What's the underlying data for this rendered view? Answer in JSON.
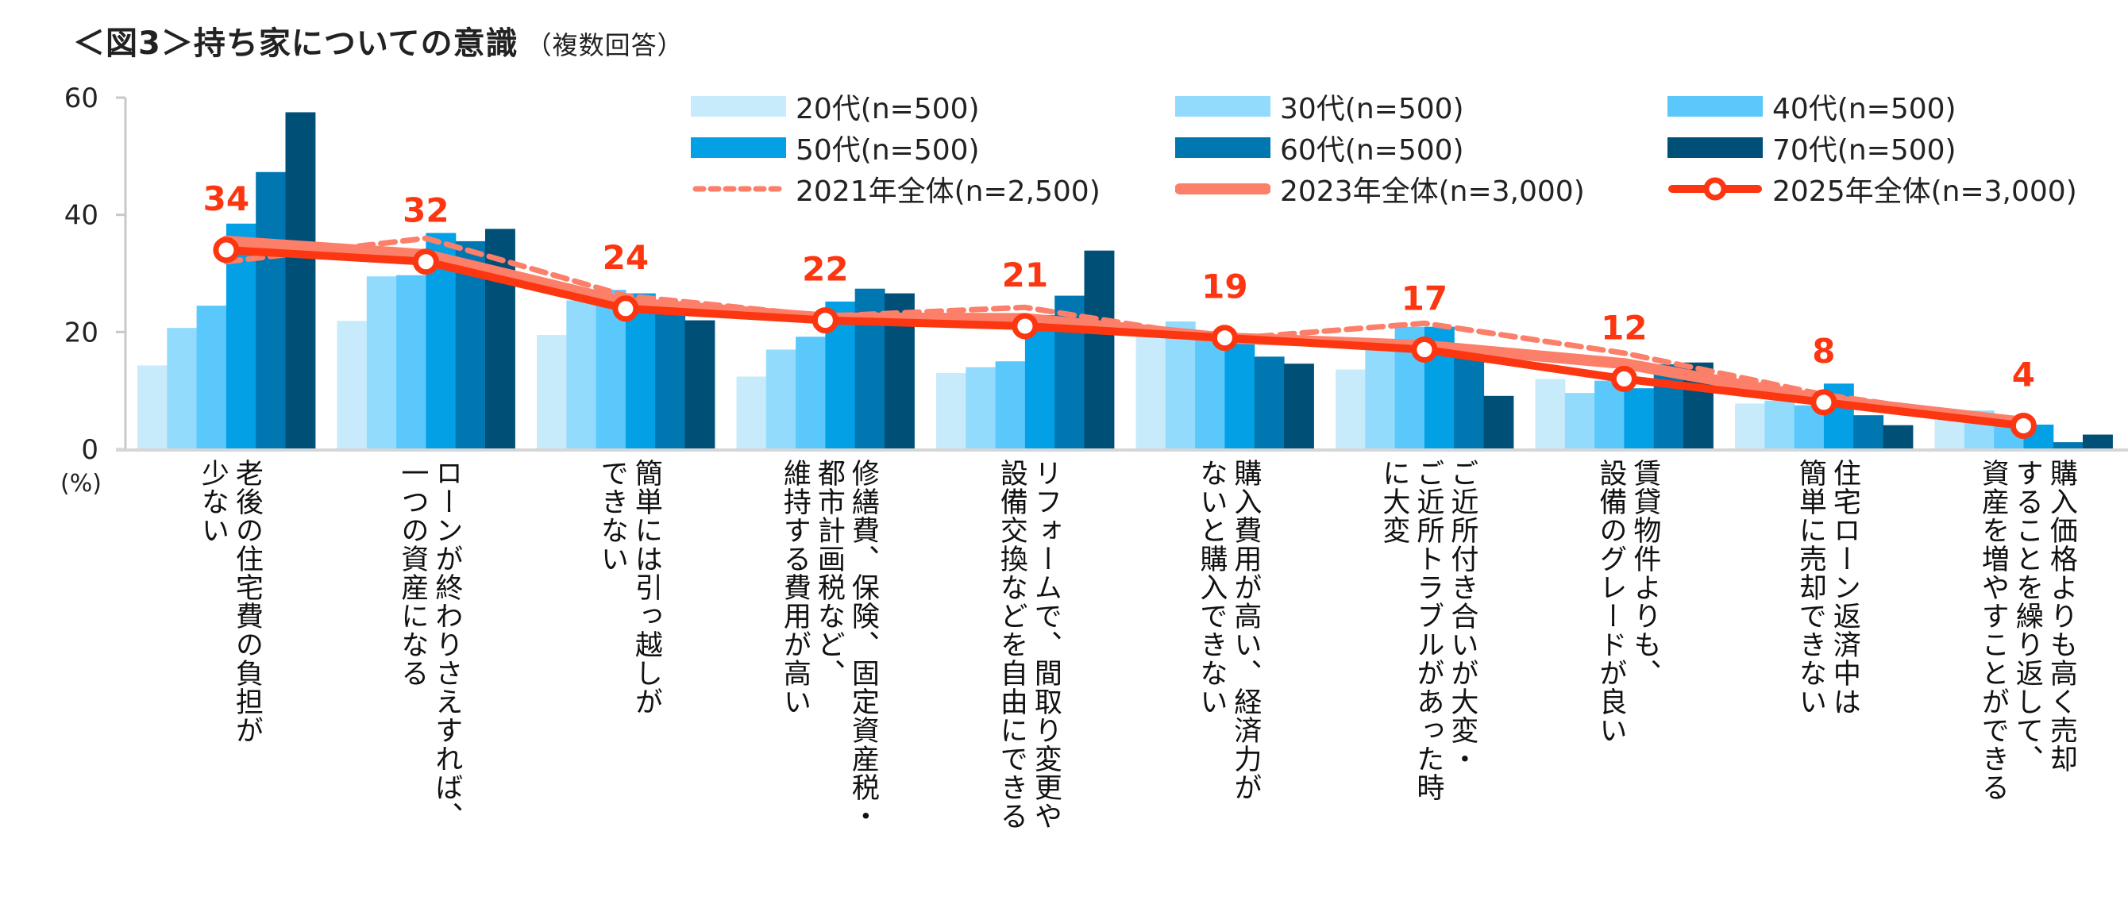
{
  "title": {
    "main": "＜図3＞持ち家についての意識",
    "sub": "（複数回答）"
  },
  "unit_label": "(%)",
  "chart_data": {
    "type": "bar",
    "title": "＜図3＞持ち家についての意識（複数回答）",
    "xlabel": "",
    "ylabel": "(%)",
    "ylim": [
      0,
      60
    ],
    "yticks": [
      0,
      20,
      40,
      60
    ],
    "grid": false,
    "legend_position": "top-right",
    "categories": [
      "老後の住宅費の負担が\n少ない",
      "ローンが終わりさえすれば、\n一つの資産になる",
      "簡単には引っ越しが\nできない",
      "修繕費、保険、固定資産税・\n都市計画税など、\n維持する費用が高い",
      "リフォームで、間取り変更や\n設備交換などを自由にできる",
      "購入費用が高い、経済力が\nないと購入できない",
      "ご近所付き合いが大変・\nご近所トラブルがあった時\nに大変",
      "賃貸物件よりも、\n設備のグレードが良い",
      "住宅ローン返済中は\n簡単に売却できない",
      "購入価格よりも高く売却\nすることを繰り返して、\n資産を増やすことができる"
    ],
    "bar_series": [
      {
        "name": "20代(n=500)",
        "color": "#c8ebfb",
        "values": [
          14.3,
          21.9,
          19.5,
          12.4,
          13.0,
          20.8,
          13.6,
          12.0,
          7.8,
          5.0
        ]
      },
      {
        "name": "30代(n=500)",
        "color": "#93dbfc",
        "values": [
          20.7,
          29.5,
          25.4,
          17.0,
          14.0,
          21.8,
          17.5,
          9.6,
          8.3,
          6.6
        ]
      },
      {
        "name": "40代(n=500)",
        "color": "#5bc8fc",
        "values": [
          24.5,
          29.7,
          27.2,
          19.2,
          15.0,
          19.5,
          20.9,
          11.7,
          7.5,
          4.5
        ]
      },
      {
        "name": "50代(n=500)",
        "color": "#03a0e6",
        "values": [
          38.5,
          36.9,
          26.6,
          25.2,
          22.9,
          18.5,
          20.9,
          10.4,
          11.2,
          4.2
        ]
      },
      {
        "name": "60代(n=500)",
        "color": "#0077b0",
        "values": [
          47.3,
          35.5,
          24.0,
          27.4,
          26.2,
          15.8,
          16.5,
          14.5,
          5.8,
          1.2
        ]
      },
      {
        "name": "70代(n=500)",
        "color": "#004f76",
        "values": [
          57.5,
          37.6,
          22.0,
          26.6,
          33.9,
          14.6,
          9.1,
          14.8,
          4.1,
          2.5
        ]
      }
    ],
    "line_series": [
      {
        "name": "2021年全体(n=2,500)",
        "color": "#fc7f6a",
        "style": "dashed",
        "values": [
          32,
          36,
          26.2,
          22.7,
          24.2,
          18.8,
          21.5,
          16.4,
          9.3,
          4.5
        ]
      },
      {
        "name": "2023年全体(n=3,000)",
        "color": "#fc7f6a",
        "style": "solid-thick",
        "values": [
          35.5,
          33.2,
          25.0,
          22.4,
          22.3,
          19.0,
          17.7,
          14.6,
          8.5,
          4.6
        ]
      },
      {
        "name": "2025年全体(n=3,000)",
        "color": "#fc3610",
        "style": "solid-marker",
        "values": [
          34,
          32,
          24,
          22,
          21,
          19,
          17,
          12,
          8,
          4
        ],
        "labels": [
          "34",
          "32",
          "24",
          "22",
          "21",
          "19",
          "17",
          "12",
          "8",
          "4"
        ]
      }
    ]
  }
}
